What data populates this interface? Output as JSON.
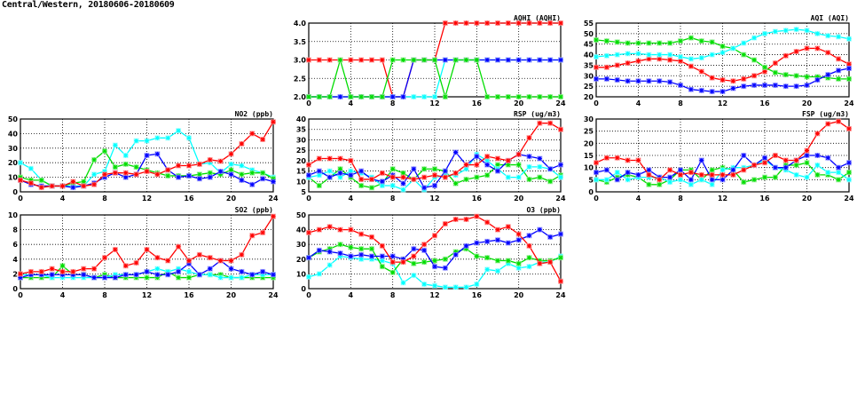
{
  "title": "Central/Western, 20180606-20180609",
  "colors": {
    "red": "#ff0000",
    "green": "#00dd00",
    "cyan": "#00ffff",
    "blue": "#0000ff"
  },
  "chart_data": [
    {
      "id": "aqhi",
      "type": "line",
      "title": "AQHI (AQHI)",
      "ylim": [
        2,
        4
      ],
      "yticks": [
        "2.0",
        "2.5",
        "3.0",
        "3.5",
        "4.0"
      ],
      "ytick_values": [
        2,
        2.5,
        3,
        3.5,
        4
      ],
      "xticks": [
        0,
        4,
        8,
        12,
        16,
        20,
        24
      ],
      "grid": true,
      "series": [
        {
          "name": "red",
          "values": [
            3,
            3,
            3,
            3,
            3,
            3,
            3,
            3,
            2,
            2,
            3,
            3,
            3,
            4,
            4,
            4,
            4,
            4,
            4,
            4,
            4,
            4,
            4,
            4,
            4
          ]
        },
        {
          "name": "cyan",
          "values": [
            2,
            2,
            2,
            2,
            2,
            2,
            2,
            2,
            2,
            2,
            2,
            2,
            2,
            3,
            3,
            3,
            3,
            3,
            3,
            3,
            3,
            3,
            3,
            3,
            3
          ]
        },
        {
          "name": "blue",
          "values": [
            2,
            2,
            2,
            2,
            2,
            2,
            2,
            2,
            2,
            2,
            3,
            3,
            3,
            3,
            3,
            3,
            3,
            3,
            3,
            3,
            3,
            3,
            3,
            3,
            3
          ]
        },
        {
          "name": "green",
          "values": [
            2,
            2,
            2,
            3,
            2,
            2,
            2,
            2,
            3,
            3,
            3,
            3,
            3,
            2,
            3,
            3,
            3,
            2,
            2,
            2,
            2,
            2,
            2,
            2,
            2
          ]
        }
      ]
    },
    {
      "id": "aqi",
      "type": "line",
      "title": "AQI (AQI)",
      "ylim": [
        20,
        55
      ],
      "yticks": [
        "20",
        "25",
        "30",
        "35",
        "40",
        "45",
        "50",
        "55"
      ],
      "ytick_values": [
        20,
        25,
        30,
        35,
        40,
        45,
        50,
        55
      ],
      "xticks": [
        0,
        4,
        8,
        12,
        16,
        20,
        24
      ],
      "grid": true,
      "series": [
        {
          "name": "red",
          "values": [
            34,
            34,
            35,
            36,
            37,
            38,
            38,
            37.5,
            37,
            34.5,
            32,
            29,
            28,
            27.5,
            28.5,
            30,
            32,
            36,
            39.5,
            41.5,
            43,
            43,
            41,
            38,
            35.5
          ]
        },
        {
          "name": "green",
          "values": [
            47,
            46.5,
            46,
            45.5,
            45.5,
            45.5,
            45.5,
            45.5,
            46.5,
            48,
            46.5,
            46,
            44,
            43,
            40,
            37.5,
            34,
            31.5,
            30.5,
            30,
            29.5,
            29.5,
            29,
            28.5,
            28.5
          ]
        },
        {
          "name": "cyan",
          "values": [
            39,
            39.5,
            40,
            40.5,
            40.5,
            40,
            40,
            40,
            39,
            38,
            38.5,
            40,
            41,
            43,
            45.5,
            48,
            50,
            51,
            51.5,
            52,
            51.5,
            50,
            49,
            48.5,
            47.5
          ]
        },
        {
          "name": "blue",
          "values": [
            28.5,
            28.5,
            28,
            27.5,
            27.5,
            27.5,
            27.5,
            27,
            25.5,
            23.5,
            23,
            22.5,
            22.5,
            24,
            25,
            25.5,
            25.5,
            25.5,
            25,
            25,
            25.5,
            28,
            30.5,
            32.5,
            33.5
          ]
        }
      ]
    },
    {
      "id": "no2",
      "type": "line",
      "title": "NO2 (ppb)",
      "ylim": [
        0,
        50
      ],
      "yticks": [
        "0",
        "10",
        "20",
        "30",
        "40",
        "50"
      ],
      "ytick_values": [
        0,
        10,
        20,
        30,
        40,
        50
      ],
      "xticks": [
        0,
        4,
        8,
        12,
        16,
        20,
        24
      ],
      "grid": true,
      "series": [
        {
          "name": "cyan",
          "values": [
            20,
            16,
            8,
            4,
            4,
            4,
            4,
            12,
            14,
            32,
            25,
            35,
            35,
            37,
            37,
            42,
            37,
            19,
            20,
            13,
            19,
            18,
            15,
            13,
            10
          ]
        },
        {
          "name": "green",
          "values": [
            10,
            8,
            8,
            4,
            4,
            6,
            7,
            22,
            28,
            17,
            19,
            17,
            15,
            13,
            11,
            11,
            11,
            12,
            13,
            12,
            15,
            12,
            13,
            13,
            9
          ]
        },
        {
          "name": "blue",
          "values": [
            8,
            5,
            4,
            4,
            4,
            3,
            4,
            6,
            10,
            13,
            10,
            12,
            25,
            26,
            15,
            10,
            11,
            9,
            10,
            14,
            12,
            8,
            5,
            9,
            7
          ]
        },
        {
          "name": "red",
          "values": [
            8,
            6,
            3,
            4,
            4,
            7,
            4,
            5,
            12,
            13,
            13,
            12,
            14,
            12,
            15,
            18,
            18,
            19,
            22,
            21,
            26,
            33,
            40,
            36,
            48
          ]
        }
      ]
    },
    {
      "id": "rsp",
      "type": "line",
      "title": "RSP (ug/m3)",
      "ylim": [
        5,
        40
      ],
      "yticks": [
        "5",
        "10",
        "15",
        "20",
        "25",
        "30",
        "35",
        "40"
      ],
      "ytick_values": [
        5,
        10,
        15,
        20,
        25,
        30,
        35,
        40
      ],
      "xticks": [
        0,
        4,
        8,
        12,
        16,
        20,
        24
      ],
      "grid": true,
      "series": [
        {
          "name": "green",
          "values": [
            12,
            8,
            12,
            16,
            12,
            8,
            7,
            9,
            16,
            14,
            11,
            16,
            16,
            15,
            9,
            11,
            12,
            13,
            18,
            18,
            18,
            11,
            12,
            10,
            13
          ]
        },
        {
          "name": "cyan",
          "values": [
            12,
            13,
            15,
            12,
            15,
            14,
            12,
            8,
            8,
            6,
            11,
            6,
            12,
            13,
            13,
            16,
            23,
            20,
            16,
            12,
            12,
            17,
            17,
            16,
            12
          ]
        },
        {
          "name": "blue",
          "values": [
            13,
            15,
            12,
            14,
            13,
            15,
            11,
            10,
            13,
            9,
            16,
            7,
            8,
            15,
            24,
            18,
            22,
            18,
            15,
            20,
            23,
            22,
            21,
            16,
            18
          ]
        },
        {
          "name": "red",
          "values": [
            18,
            21,
            21,
            21,
            20,
            11,
            11,
            14,
            12,
            12,
            11,
            12,
            13,
            12,
            14,
            18,
            18,
            22,
            21,
            20,
            23,
            31,
            38,
            38,
            35
          ]
        }
      ]
    },
    {
      "id": "fsp",
      "type": "line",
      "title": "FSP (ug/m3)",
      "ylim": [
        0,
        30
      ],
      "yticks": [
        "0",
        "5",
        "10",
        "15",
        "20",
        "25",
        "30"
      ],
      "ytick_values": [
        0,
        5,
        10,
        15,
        20,
        25,
        30
      ],
      "xticks": [
        0,
        4,
        8,
        12,
        16,
        20,
        24
      ],
      "grid": true,
      "series": [
        {
          "name": "green",
          "values": [
            5,
            4,
            6,
            7,
            6,
            3,
            3,
            5,
            9,
            9,
            5,
            9,
            10,
            9,
            4,
            5,
            6,
            6,
            11,
            11,
            12,
            7,
            7,
            5,
            8
          ]
        },
        {
          "name": "cyan",
          "values": [
            5,
            5,
            8,
            5,
            6,
            6,
            6,
            4,
            5,
            3,
            5,
            3,
            9,
            10,
            10,
            11,
            13,
            10,
            9,
            7,
            6,
            11,
            8,
            8,
            5
          ]
        },
        {
          "name": "blue",
          "values": [
            8,
            9,
            5,
            8,
            7,
            9,
            6,
            6,
            9,
            5,
            13,
            5,
            5,
            9,
            15,
            11,
            14,
            10,
            10,
            13,
            15,
            15,
            14,
            10,
            12
          ]
        },
        {
          "name": "red",
          "values": [
            12,
            14,
            14,
            13,
            13,
            7,
            5,
            9,
            7,
            8,
            7,
            7,
            7,
            7,
            9,
            11,
            12,
            15,
            13,
            13,
            17,
            24,
            28,
            29,
            26
          ]
        }
      ]
    },
    {
      "id": "so2",
      "type": "line",
      "title": "SO2 (ppb)",
      "ylim": [
        0,
        10
      ],
      "yticks": [
        "0",
        "2",
        "4",
        "6",
        "8",
        "10"
      ],
      "ytick_values": [
        0,
        2,
        4,
        6,
        8,
        10
      ],
      "xticks": [
        0,
        4,
        8,
        12,
        16,
        20,
        24
      ],
      "grid": true,
      "series": [
        {
          "name": "green",
          "values": [
            1.5,
            1.5,
            1.5,
            1.5,
            3.1,
            1.9,
            1.9,
            1.5,
            1.9,
            1.5,
            1.5,
            1.5,
            1.5,
            1.5,
            2.3,
            1.5,
            1.5,
            1.9,
            1.9,
            1.9,
            1.5,
            1.5,
            1.5,
            1.5,
            1.5
          ]
        },
        {
          "name": "cyan",
          "values": [
            1.9,
            1.9,
            1.9,
            1.5,
            1.5,
            1.5,
            1.5,
            1.5,
            1.5,
            1.9,
            1.9,
            1.9,
            2.3,
            2.7,
            2.3,
            2.7,
            2.3,
            1.9,
            1.9,
            1.5,
            1.5,
            1.5,
            1.9,
            1.9,
            1.9
          ]
        },
        {
          "name": "blue",
          "values": [
            1.5,
            1.9,
            1.9,
            1.9,
            1.9,
            1.9,
            1.9,
            1.5,
            1.5,
            1.5,
            1.9,
            1.9,
            2.3,
            1.9,
            1.9,
            2.3,
            3.4,
            1.9,
            2.7,
            3.8,
            2.7,
            2.3,
            1.9,
            2.3,
            1.9
          ]
        },
        {
          "name": "red",
          "values": [
            2,
            2.3,
            2.3,
            2.7,
            2.3,
            2.3,
            2.7,
            2.7,
            4.2,
            5.3,
            3.1,
            3.5,
            5.3,
            4.2,
            3.8,
            5.7,
            3.8,
            4.6,
            4.2,
            3.8,
            3.8,
            4.6,
            7.2,
            7.6,
            9.8
          ]
        }
      ]
    },
    {
      "id": "o3",
      "type": "line",
      "title": "O3 (ppb)",
      "ylim": [
        0,
        50
      ],
      "yticks": [
        "0",
        "10",
        "20",
        "30",
        "40",
        "50"
      ],
      "ytick_values": [
        0,
        10,
        20,
        30,
        40,
        50
      ],
      "xticks": [
        0,
        4,
        8,
        12,
        16,
        20,
        24
      ],
      "grid": true,
      "series": [
        {
          "name": "cyan",
          "values": [
            8,
            10,
            16,
            22,
            21,
            20,
            20,
            19,
            17,
            4,
            9,
            3,
            2,
            1,
            1,
            1,
            3,
            13,
            12,
            17,
            14,
            15,
            18,
            18,
            22
          ]
        },
        {
          "name": "green",
          "values": [
            21,
            25,
            27,
            30,
            28,
            27,
            27,
            15,
            11,
            20,
            17,
            18,
            19,
            20,
            25,
            27,
            22,
            21,
            19,
            19,
            17,
            21,
            19,
            19,
            21
          ]
        },
        {
          "name": "blue",
          "values": [
            21,
            26,
            25,
            24,
            22,
            23,
            22,
            22,
            22,
            20,
            27,
            26,
            15,
            14,
            23,
            29,
            31,
            32,
            33,
            31,
            33,
            36,
            40,
            35,
            37
          ]
        },
        {
          "name": "red",
          "values": [
            38,
            40,
            42,
            40,
            40,
            37,
            35,
            29,
            18,
            18,
            22,
            30,
            36,
            44,
            47,
            47,
            49,
            45,
            40,
            42,
            37,
            29,
            17,
            18,
            5
          ]
        }
      ]
    }
  ]
}
